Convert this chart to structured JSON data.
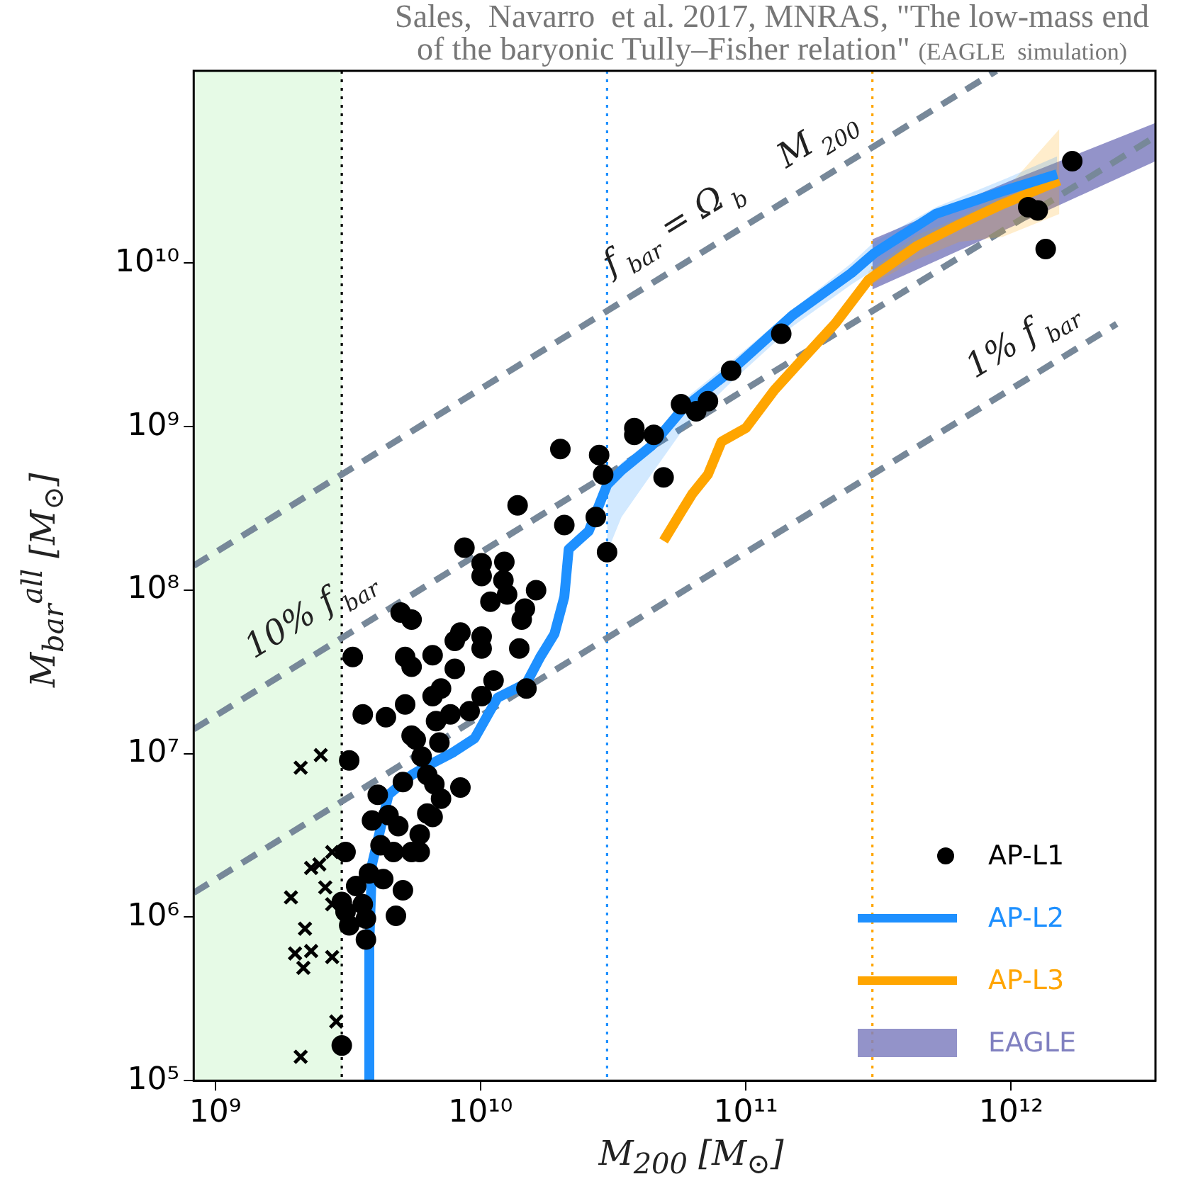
{
  "chart_data": {
    "type": "scatter",
    "title": "Sales,  Navarro  et al. 2017, MNRAS, \"The low-mass end of the baryonic Tully–Fisher relation\"",
    "subtitle": "(EAGLE  simulation)",
    "xlabel": "M$_{200}$ [M$_{⊙}$]",
    "ylabel": "M$_{bar}$$^{all}$ [M$_{⊙}$]",
    "log": "xy",
    "legend": "bottom right",
    "xlim": [
      830000000.0,
      3500000000000.0
    ],
    "ylim": [
      100000.0,
      150000000000.0
    ],
    "xticks": [
      {
        "value": 1000000000.0,
        "label": "10⁹"
      },
      {
        "value": 10000000000.0,
        "label": "10¹⁰"
      },
      {
        "value": 100000000000.0,
        "label": "10¹¹"
      },
      {
        "value": 1000000000000.0,
        "label": "10¹²"
      }
    ],
    "yticks": [
      {
        "value": 100000.0,
        "label": "10⁵"
      },
      {
        "value": 1000000.0,
        "label": "10⁶"
      },
      {
        "value": 10000000.0,
        "label": "10⁷"
      },
      {
        "value": 100000000.0,
        "label": "10⁸"
      },
      {
        "value": 1000000000.0,
        "label": "10⁹"
      },
      {
        "value": 10000000000.0,
        "label": "10¹⁰"
      }
    ],
    "bands": [
      {
        "axis": "x",
        "from": 830000000.0,
        "to": 3000000000.0,
        "color": "#e6fae6"
      }
    ],
    "ref_lines": [
      {
        "axis": "x",
        "value": 3000000000.0,
        "color": "#000000",
        "line_style": "dotted"
      },
      {
        "axis": "x",
        "value": 30000000000.0,
        "color": "#1e90ff",
        "line_style": "dotted"
      },
      {
        "axis": "x",
        "value": 300000000000.0,
        "color": "#ffa500",
        "line_style": "dotted"
      }
    ],
    "annotations": [
      {
        "text": "f$_{bar}$ = Ω$_{b}$",
        "x": 63000000000.0,
        "y": 10700000000.0
      },
      {
        "text": "M$_{200}$",
        "x": 220000000000.0,
        "y": 37000000000.0
      },
      {
        "text": "10% f$_{bar}$",
        "x": 2700000000.0,
        "y": 46000000.0
      },
      {
        "text": "1% f$_{bar}$",
        "x": 1300000000000.0,
        "y": 2200000000.0
      }
    ],
    "series": [
      {
        "name": "AP-L1",
        "color": "#000000",
        "marker": "circle",
        "x": [
          13800000000.0,
          20700000000.0,
          27200000000.0,
          30000000000.0,
          8700000000.0,
          10100000000.0,
          12300000000.0,
          10100000000.0,
          12200000000.0,
          12600000000.0,
          16200000000.0,
          10900000000.0,
          14700000000.0,
          14300000000.0,
          5000000000.0,
          5500000000.0,
          8400000000.0,
          8000000000.0,
          10100000000.0,
          10100000000.0,
          14000000000.0,
          3300000000.0,
          5200000000.0,
          5500000000.0,
          6600000000.0,
          8000000000.0,
          11200000000.0,
          7100000000.0,
          6600000000.0,
          10100000000.0,
          5200000000.0,
          7700000000.0,
          6800000000.0,
          9100000000.0,
          3600000000.0,
          4400000000.0,
          5500000000.0,
          5700000000.0,
          7000000000.0,
          6000000000.0,
          3200000000.0,
          8400000000.0,
          5100000000.0,
          6300000000.0,
          6700000000.0,
          4100000000.0,
          7100000000.0,
          6300000000.0,
          3900000000.0,
          4500000000.0,
          4900000000.0,
          6600000000.0,
          5900000000.0,
          4200000000.0,
          4700000000.0,
          5500000000.0,
          5900000000.0,
          3100000000.0,
          3800000000.0,
          3400000000.0,
          4300000000.0,
          5100000000.0,
          3000000000.0,
          3600000000.0,
          4800000000.0,
          3100000000.0,
          3200000000.0,
          3700000000.0,
          3700000000.0,
          3000000000.0,
          14900000000.0,
          136000000000.0,
          88000000000.0,
          57000000000.0,
          72000000000.0,
          65000000000.0,
          38000000000.0,
          38000000000.0,
          45000000000.0,
          20000000000.0,
          28000000000.0,
          29000000000.0,
          49000000000.0,
          1700000000000.0,
          1160000000000.0,
          1260000000000.0,
          1350000000000.0
        ],
        "values": [
          330000000.0,
          250000000.0,
          280000000.0,
          171000000.0,
          182000000.0,
          146000000.0,
          149000000.0,
          122000000.0,
          115000000.0,
          94000000.0,
          100000000.0,
          85000000.0,
          77000000.0,
          66000000.0,
          73000000.0,
          66000000.0,
          55000000.0,
          49000000.0,
          52000000.0,
          44000000.0,
          44000000.0,
          39000000.0,
          39000000.0,
          34000000.0,
          40000000.0,
          33000000.0,
          28000000.0,
          25000000.0,
          22500000.0,
          22500000.0,
          20000000.0,
          17400000.0,
          15800000.0,
          18200000.0,
          17400000.0,
          16700000.0,
          12900000.0,
          12200000.0,
          11700000.0,
          9600000.0,
          9100000.0,
          6200000.0,
          6700000.0,
          7400000.0,
          6500000.0,
          5600000.0,
          5300000.0,
          4300000.0,
          3900000.0,
          4200000.0,
          3600000.0,
          4100000.0,
          3200000.0,
          2750000.0,
          2500000.0,
          2500000.0,
          2500000.0,
          2500000.0,
          1850000.0,
          1550000.0,
          1710000.0,
          1460000.0,
          1240000.0,
          1200000.0,
          1020000.0,
          1080000.0,
          890000.0,
          980000.0,
          730000.0,
          164000.0,
          25000000.0,
          3700000000.0,
          2200000000.0,
          1370000000.0,
          1430000000.0,
          1240000000.0,
          980000000.0,
          890000000.0,
          890000000.0,
          730000000.0,
          670000000.0,
          510000000.0,
          490000000.0,
          42000000000.0,
          22000000000.0,
          21000000000.0,
          12200000000.0
        ]
      },
      {
        "name": "AP-L2",
        "type": "line",
        "color": "#1e90ff",
        "x": [
          3810000000.0,
          3810000000.0,
          3900000000.0,
          4500000000.0,
          5500000000.0,
          6200000000.0,
          7900000000.0,
          9500000000.0,
          11600000000.0,
          14900000000.0,
          16800000000.0,
          19000000000.0,
          20700000000.0,
          21500000000.0,
          25600000000.0,
          30000000000.0,
          34000000000.0,
          44000000000.0,
          58000000000.0,
          88000000000.0,
          150000000000.0,
          250000000000.0,
          305000000000.0,
          520000000000.0,
          960000000000.0,
          1490000000000.0
        ],
        "values": [
          100000.0,
          690000.0,
          2100000.0,
          5600000.0,
          7400000.0,
          8300000.0,
          10200000.0,
          12400000.0,
          22000000.0,
          27000000.0,
          39000000.0,
          54000000.0,
          91000000.0,
          178000000.0,
          230000000.0,
          440000000.0,
          540000000.0,
          760000000.0,
          1290000000.0,
          2200000000.0,
          4800000000.0,
          8700000000.0,
          11500000000.0,
          20000000000.0,
          28000000000.0,
          35000000000.0
        ],
        "lower": [
          null,
          null,
          null,
          null,
          null,
          null,
          null,
          null,
          null,
          null,
          null,
          null,
          null,
          null,
          null,
          170000000.0,
          280000000.0,
          510000000.0,
          960000000.0,
          1870000000.0,
          4100000000.0,
          7400000000.0,
          9100000000.0,
          14800000000.0,
          22000000000.0,
          30000000000.0
        ],
        "upper": [
          null,
          null,
          null,
          null,
          null,
          null,
          null,
          null,
          null,
          null,
          null,
          null,
          null,
          null,
          null,
          460000000.0,
          600000000.0,
          830000000.0,
          1450000000.0,
          2500000000.0,
          5200000000.0,
          10000000000.0,
          13500000000.0,
          22000000000.0,
          33000000000.0,
          45000000000.0
        ]
      },
      {
        "name": "AP-L3",
        "type": "line",
        "color": "#ffa500",
        "x": [
          49000000000.0,
          57000000000.0,
          63000000000.0,
          72000000000.0,
          81000000000.0,
          100000000000.0,
          128000000000.0,
          164000000000.0,
          218000000000.0,
          290000000000.0,
          440000000000.0,
          640000000000.0,
          930000000000.0,
          1520000000000.0
        ],
        "values": [
          200000000.0,
          300000000.0,
          390000000.0,
          510000000.0,
          810000000.0,
          980000000.0,
          1670000000.0,
          2600000000.0,
          4300000000.0,
          7900000000.0,
          12700000000.0,
          17300000000.0,
          23000000000.0,
          32000000000.0
        ],
        "lower": [
          null,
          null,
          null,
          null,
          null,
          null,
          null,
          null,
          null,
          7200000000.0,
          10500000000.0,
          13500000000.0,
          14500000000.0,
          20000000000.0
        ],
        "upper": [
          null,
          null,
          null,
          null,
          null,
          null,
          null,
          null,
          null,
          8900000000.0,
          14800000000.0,
          19000000000.0,
          27000000000.0,
          66000000000.0
        ]
      },
      {
        "name": "EAGLE",
        "type": "area",
        "color": "#8080c0",
        "x": [
          300000000000.0,
          1000000000000.0,
          3500000000000.0
        ],
        "values": [
          null,
          null,
          null
        ],
        "lower": [
          6900000000.0,
          16600000000.0,
          42000000000.0
        ],
        "upper": [
          14000000000.0,
          32000000000.0,
          72000000000.0
        ]
      },
      {
        "type": "line",
        "color": "#778899",
        "line_style": "dashed",
        "x": [
          830000000.0,
          880000000000.0
        ],
        "values": [
          141000000.0,
          150000000000.0
        ]
      },
      {
        "type": "line",
        "color": "#778899",
        "line_style": "dashed",
        "x": [
          830000000.0,
          3500000000000.0
        ],
        "values": [
          14100000.0,
          59500000000.0
        ]
      },
      {
        "type": "line",
        "color": "#778899",
        "line_style": "dashed",
        "x": [
          830000000.0,
          2500000000000.0
        ],
        "values": [
          1410000.0,
          4250000000.0
        ]
      },
      {
        "color": "#000000",
        "marker": "cross",
        "x": [
          2100000000.0,
          2500000000.0,
          2470000000.0,
          2300000000.0,
          2760000000.0,
          1930000000.0,
          2600000000.0,
          2760000000.0,
          2180000000.0,
          2000000000.0,
          2300000000.0,
          2150000000.0,
          2760000000.0,
          2860000000.0,
          2100000000.0
        ],
        "values": [
          8200000.0,
          9800000.0,
          2100000.0,
          2000000.0,
          2500000.0,
          1320000.0,
          1520000.0,
          1200000.0,
          850000.0,
          600000.0,
          620000.0,
          490000.0,
          570000.0,
          230000.0,
          140000.0
        ]
      }
    ]
  }
}
